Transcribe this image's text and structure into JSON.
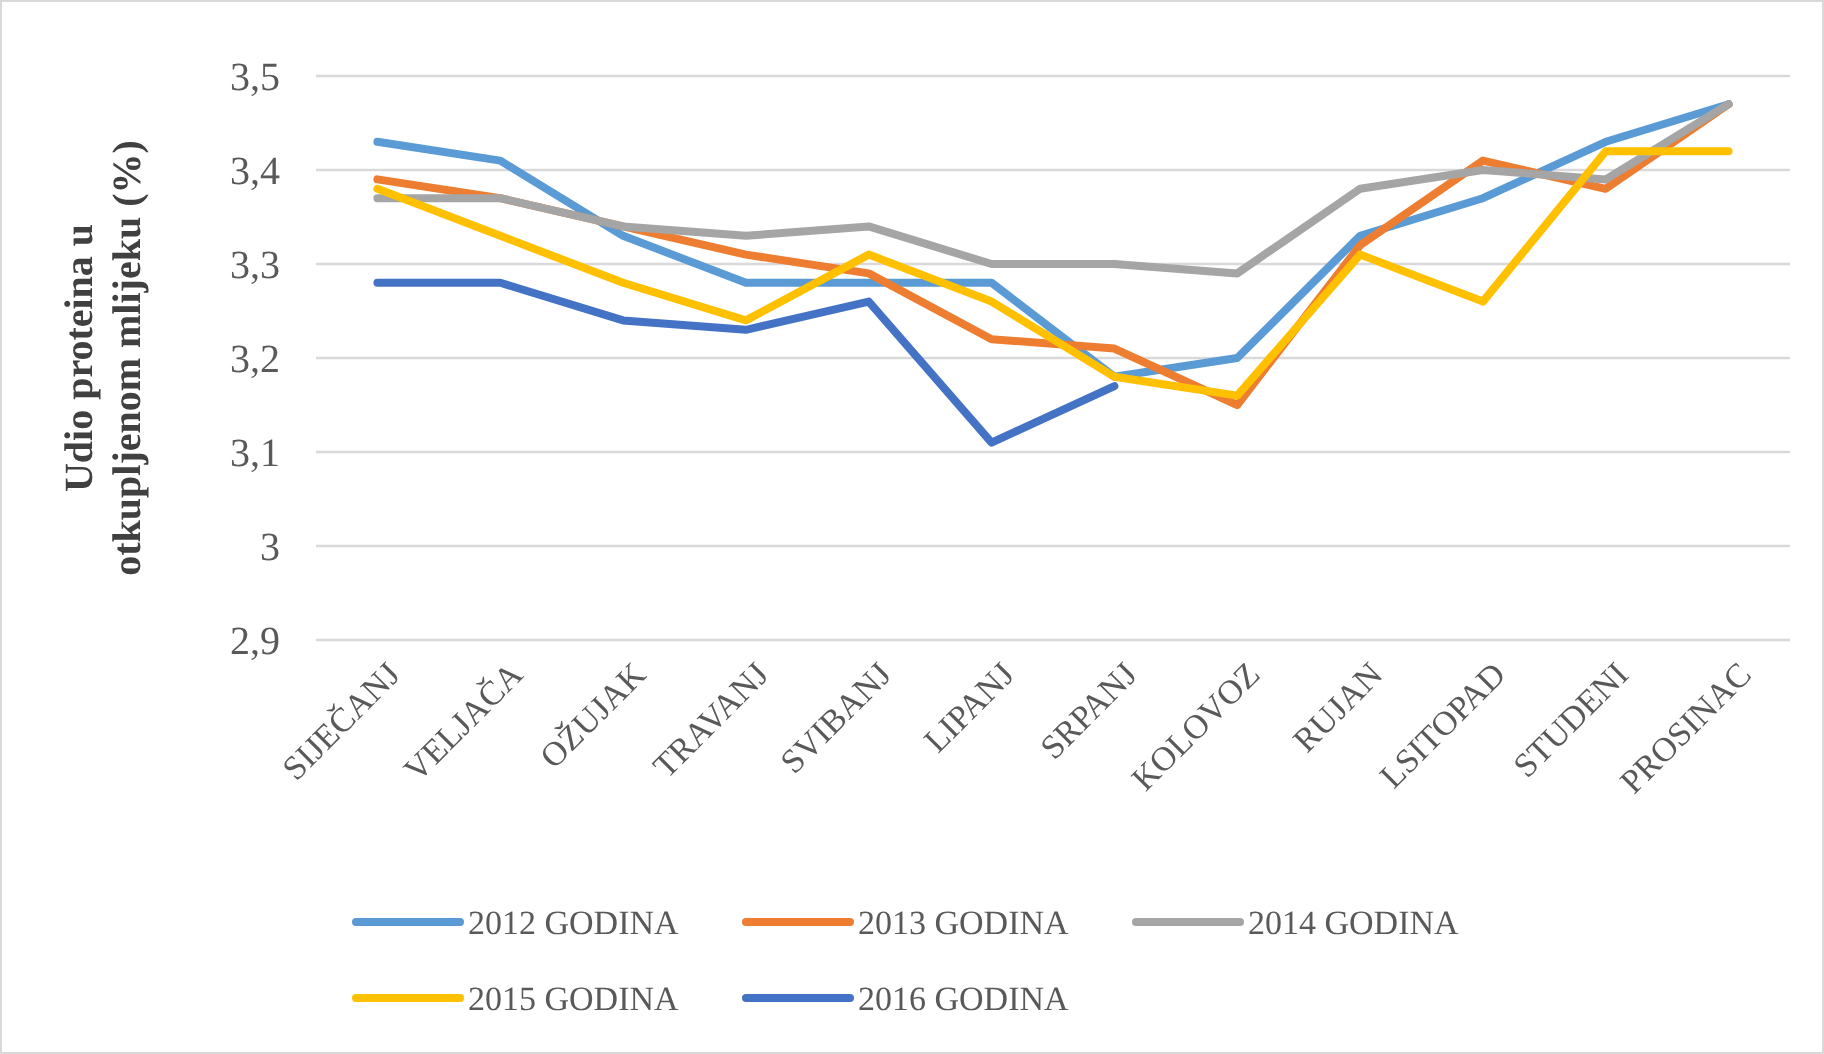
{
  "chart_data": {
    "type": "line",
    "ylabel": "Udio proteina u otkupljenom mlijeku (%)",
    "categories": [
      "SIJEČANJ",
      "VELJAČA",
      "OŽUJAK",
      "TRAVANJ",
      "SVIBANJ",
      "LIPANJ",
      "SRPANJ",
      "KOLOVOZ",
      "RUJAN",
      "LSITOPAD",
      "STUDENI",
      "PROSINAC"
    ],
    "series": [
      {
        "name": "2012 GODINA",
        "color": "#5b9bd5",
        "values": [
          3.43,
          3.41,
          3.33,
          3.28,
          3.28,
          3.28,
          3.18,
          3.2,
          3.33,
          3.37,
          3.43,
          3.47
        ]
      },
      {
        "name": "2013 GODINA",
        "color": "#ed7d31",
        "values": [
          3.39,
          3.37,
          3.34,
          3.31,
          3.29,
          3.22,
          3.21,
          3.15,
          3.32,
          3.41,
          3.38,
          3.47
        ]
      },
      {
        "name": "2014 GODINA",
        "color": "#a5a5a5",
        "values": [
          3.37,
          3.37,
          3.34,
          3.33,
          3.34,
          3.3,
          3.3,
          3.29,
          3.38,
          3.4,
          3.39,
          3.47
        ]
      },
      {
        "name": "2015 GODINA",
        "color": "#ffc000",
        "values": [
          3.38,
          3.33,
          3.28,
          3.24,
          3.31,
          3.26,
          3.18,
          3.16,
          3.31,
          3.26,
          3.42,
          3.42
        ]
      },
      {
        "name": "2016 GODINA",
        "color": "#4472c4",
        "values": [
          3.28,
          3.28,
          3.24,
          3.23,
          3.26,
          3.11,
          3.17,
          null,
          null,
          null,
          null,
          null
        ]
      }
    ],
    "ylim": [
      2.9,
      3.5
    ],
    "yticks": [
      {
        "value": 2.9,
        "label": "2,9"
      },
      3,
      {
        "value": 3.1,
        "label": "3,1"
      },
      {
        "value": 3.2,
        "label": "3,2"
      },
      {
        "value": 3.3,
        "label": "3,3"
      },
      {
        "value": 3.4,
        "label": "3,4"
      },
      {
        "value": 3.5,
        "label": "3,5"
      }
    ],
    "grid": "y",
    "legend": "bottom",
    "line_style": "solid"
  }
}
